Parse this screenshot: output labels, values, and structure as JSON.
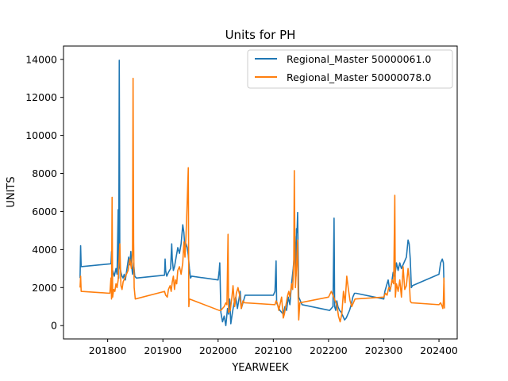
{
  "chart_data": {
    "type": "line",
    "title": "Units for PH",
    "xlabel": "YEARWEEK",
    "ylabel": "UNITS",
    "xlim": [
      201720,
      202433
    ],
    "ylim": [
      -700,
      14700
    ],
    "xticks": [
      201800,
      201900,
      202000,
      202100,
      202200,
      202300,
      202400
    ],
    "xtick_labels": [
      "201800",
      "201900",
      "202000",
      "202100",
      "202200",
      "202300",
      "202400"
    ],
    "yticks": [
      0,
      2000,
      4000,
      6000,
      8000,
      10000,
      12000,
      14000
    ],
    "ytick_labels": [
      "0",
      "2000",
      "4000",
      "6000",
      "8000",
      "10000",
      "12000",
      "14000"
    ],
    "grid": false,
    "legend_position": "top-right",
    "series": [
      {
        "name": "Regional_Master 50000061.0",
        "color": "#1f77b4",
        "points": [
          [
            201750,
            2500
          ],
          [
            201751,
            4200
          ],
          [
            201752,
            3100
          ],
          [
            201806,
            3250
          ],
          [
            201807,
            3900
          ],
          [
            201808,
            3000
          ],
          [
            201810,
            2800
          ],
          [
            201812,
            2600
          ],
          [
            201815,
            3000
          ],
          [
            201817,
            2700
          ],
          [
            201819,
            6100
          ],
          [
            201820,
            2500
          ],
          [
            201821,
            13950
          ],
          [
            201822,
            3100
          ],
          [
            201824,
            2800
          ],
          [
            201826,
            2600
          ],
          [
            201828,
            2500
          ],
          [
            201830,
            2700
          ],
          [
            201832,
            2400
          ],
          [
            201835,
            3000
          ],
          [
            201838,
            3600
          ],
          [
            201840,
            3200
          ],
          [
            201842,
            3900
          ],
          [
            201843,
            3300
          ],
          [
            201845,
            2700
          ],
          [
            201847,
            3300
          ],
          [
            201849,
            2600
          ],
          [
            201852,
            2500
          ],
          [
            201903,
            2650
          ],
          [
            201904,
            3500
          ],
          [
            201905,
            2900
          ],
          [
            201907,
            2600
          ],
          [
            201910,
            2800
          ],
          [
            201914,
            3000
          ],
          [
            201915,
            3700
          ],
          [
            201916,
            4300
          ],
          [
            201917,
            3500
          ],
          [
            201919,
            2900
          ],
          [
            201921,
            3100
          ],
          [
            201924,
            3600
          ],
          [
            201927,
            4100
          ],
          [
            201930,
            3800
          ],
          [
            201933,
            4300
          ],
          [
            201936,
            5300
          ],
          [
            201938,
            4900
          ],
          [
            201940,
            4000
          ],
          [
            201942,
            4300
          ],
          [
            201944,
            4100
          ],
          [
            201946,
            3700
          ],
          [
            201948,
            3000
          ],
          [
            201950,
            2500
          ],
          [
            201952,
            2600
          ],
          [
            202000,
            2400
          ],
          [
            202002,
            2900
          ],
          [
            202003,
            3300
          ],
          [
            202005,
            700
          ],
          [
            202008,
            200
          ],
          [
            202011,
            500
          ],
          [
            202014,
            0
          ],
          [
            202017,
            900
          ],
          [
            202019,
            600
          ],
          [
            202021,
            1400
          ],
          [
            202023,
            100
          ],
          [
            202026,
            700
          ],
          [
            202029,
            1200
          ],
          [
            202032,
            1500
          ],
          [
            202035,
            900
          ],
          [
            202040,
            1800
          ],
          [
            202042,
            900
          ],
          [
            202046,
            1300
          ],
          [
            202049,
            1600
          ],
          [
            202100,
            1600
          ],
          [
            202103,
            1800
          ],
          [
            202105,
            3400
          ],
          [
            202106,
            1200
          ],
          [
            202109,
            1000
          ],
          [
            202112,
            800
          ],
          [
            202115,
            700
          ],
          [
            202118,
            600
          ],
          [
            202121,
            1000
          ],
          [
            202124,
            800
          ],
          [
            202127,
            1500
          ],
          [
            202130,
            1100
          ],
          [
            202133,
            2200
          ],
          [
            202136,
            3000
          ],
          [
            202138,
            3700
          ],
          [
            202139,
            4700
          ],
          [
            202140,
            3900
          ],
          [
            202141,
            2600
          ],
          [
            202142,
            5100
          ],
          [
            202143,
            4900
          ],
          [
            202144,
            5950
          ],
          [
            202146,
            1500
          ],
          [
            202149,
            1300
          ],
          [
            202152,
            1100
          ],
          [
            202202,
            800
          ],
          [
            202205,
            900
          ],
          [
            202208,
            1000
          ],
          [
            202210,
            5650
          ],
          [
            202211,
            1000
          ],
          [
            202213,
            800
          ],
          [
            202215,
            1300
          ],
          [
            202217,
            1000
          ],
          [
            202220,
            800
          ],
          [
            202223,
            700
          ],
          [
            202226,
            500
          ],
          [
            202229,
            300
          ],
          [
            202232,
            400
          ],
          [
            202235,
            600
          ],
          [
            202238,
            800
          ],
          [
            202241,
            1100
          ],
          [
            202244,
            1500
          ],
          [
            202247,
            1700
          ],
          [
            202250,
            1700
          ],
          [
            202300,
            1400
          ],
          [
            202302,
            1800
          ],
          [
            202305,
            2100
          ],
          [
            202308,
            2400
          ],
          [
            202311,
            1800
          ],
          [
            202314,
            2200
          ],
          [
            202317,
            2800
          ],
          [
            202320,
            2600
          ],
          [
            202323,
            3300
          ],
          [
            202326,
            2900
          ],
          [
            202329,
            3300
          ],
          [
            202332,
            3000
          ],
          [
            202335,
            3200
          ],
          [
            202338,
            3400
          ],
          [
            202341,
            3600
          ],
          [
            202344,
            4500
          ],
          [
            202346,
            4300
          ],
          [
            202348,
            3500
          ],
          [
            202350,
            2000
          ],
          [
            202352,
            2100
          ],
          [
            202400,
            2700
          ],
          [
            202403,
            3300
          ],
          [
            202406,
            3500
          ],
          [
            202408,
            3300
          ],
          [
            202409,
            2300
          ]
        ]
      },
      {
        "name": "Regional_Master 50000078.0",
        "color": "#ff7f0e",
        "points": [
          [
            201750,
            2000
          ],
          [
            201751,
            2600
          ],
          [
            201752,
            1800
          ],
          [
            201804,
            1700
          ],
          [
            201806,
            2500
          ],
          [
            201807,
            1400
          ],
          [
            201808,
            6750
          ],
          [
            201809,
            1500
          ],
          [
            201811,
            1900
          ],
          [
            201813,
            1800
          ],
          [
            201815,
            2200
          ],
          [
            201817,
            2000
          ],
          [
            201819,
            2400
          ],
          [
            201822,
            4300
          ],
          [
            201824,
            2100
          ],
          [
            201826,
            1900
          ],
          [
            201828,
            2300
          ],
          [
            201831,
            2500
          ],
          [
            201834,
            2700
          ],
          [
            201837,
            2900
          ],
          [
            201840,
            3500
          ],
          [
            201843,
            3000
          ],
          [
            201845,
            3800
          ],
          [
            201846,
            13000
          ],
          [
            201847,
            4400
          ],
          [
            201848,
            2000
          ],
          [
            201850,
            1400
          ],
          [
            201903,
            1800
          ],
          [
            201905,
            1600
          ],
          [
            201908,
            1500
          ],
          [
            201910,
            1900
          ],
          [
            201913,
            2100
          ],
          [
            201915,
            1800
          ],
          [
            201917,
            2300
          ],
          [
            201919,
            2600
          ],
          [
            201921,
            1900
          ],
          [
            201923,
            2400
          ],
          [
            201925,
            2200
          ],
          [
            201927,
            2900
          ],
          [
            201930,
            3100
          ],
          [
            201933,
            2700
          ],
          [
            201936,
            3300
          ],
          [
            201938,
            4400
          ],
          [
            201940,
            3600
          ],
          [
            201942,
            4800
          ],
          [
            201944,
            6500
          ],
          [
            201946,
            8300
          ],
          [
            201947,
            1000
          ],
          [
            201948,
            1400
          ],
          [
            202002,
            800
          ],
          [
            202005,
            800
          ],
          [
            202008,
            900
          ],
          [
            202011,
            1000
          ],
          [
            202014,
            1200
          ],
          [
            202016,
            1100
          ],
          [
            202018,
            4800
          ],
          [
            202019,
            700
          ],
          [
            202022,
            800
          ],
          [
            202025,
            1500
          ],
          [
            202027,
            2100
          ],
          [
            202030,
            1000
          ],
          [
            202033,
            1700
          ],
          [
            202036,
            2000
          ],
          [
            202039,
            1600
          ],
          [
            202042,
            900
          ],
          [
            202045,
            1300
          ],
          [
            202048,
            1200
          ],
          [
            202103,
            1100
          ],
          [
            202105,
            1300
          ],
          [
            202107,
            1200
          ],
          [
            202110,
            800
          ],
          [
            202112,
            1100
          ],
          [
            202115,
            1500
          ],
          [
            202118,
            400
          ],
          [
            202120,
            600
          ],
          [
            202123,
            1100
          ],
          [
            202126,
            1600
          ],
          [
            202128,
            1800
          ],
          [
            202130,
            1500
          ],
          [
            202133,
            2200
          ],
          [
            202135,
            1900
          ],
          [
            202137,
            3300
          ],
          [
            202138,
            8150
          ],
          [
            202139,
            4500
          ],
          [
            202140,
            2000
          ],
          [
            202142,
            3100
          ],
          [
            202144,
            4500
          ],
          [
            202145,
            1500
          ],
          [
            202146,
            300
          ],
          [
            202148,
            1200
          ],
          [
            202200,
            1500
          ],
          [
            202205,
            1800
          ],
          [
            202208,
            1600
          ],
          [
            202212,
            1300
          ],
          [
            202215,
            1100
          ],
          [
            202218,
            500
          ],
          [
            202221,
            200
          ],
          [
            202224,
            600
          ],
          [
            202227,
            1800
          ],
          [
            202230,
            1200
          ],
          [
            202233,
            2600
          ],
          [
            202236,
            1900
          ],
          [
            202239,
            1300
          ],
          [
            202242,
            1000
          ],
          [
            202245,
            1200
          ],
          [
            202248,
            1400
          ],
          [
            202300,
            1500
          ],
          [
            202303,
            1700
          ],
          [
            202306,
            1600
          ],
          [
            202309,
            2000
          ],
          [
            202312,
            1900
          ],
          [
            202315,
            2400
          ],
          [
            202318,
            2200
          ],
          [
            202320,
            6850
          ],
          [
            202321,
            1500
          ],
          [
            202323,
            2200
          ],
          [
            202326,
            1800
          ],
          [
            202329,
            2400
          ],
          [
            202332,
            1500
          ],
          [
            202335,
            3100
          ],
          [
            202338,
            1900
          ],
          [
            202341,
            2100
          ],
          [
            202344,
            3000
          ],
          [
            202346,
            2500
          ],
          [
            202348,
            1300
          ],
          [
            202350,
            1200
          ],
          [
            202400,
            1100
          ],
          [
            202403,
            1200
          ],
          [
            202406,
            1000
          ],
          [
            202407,
            900
          ],
          [
            202408,
            1300
          ],
          [
            202409,
            2500
          ],
          [
            202410,
            900
          ]
        ]
      }
    ]
  }
}
